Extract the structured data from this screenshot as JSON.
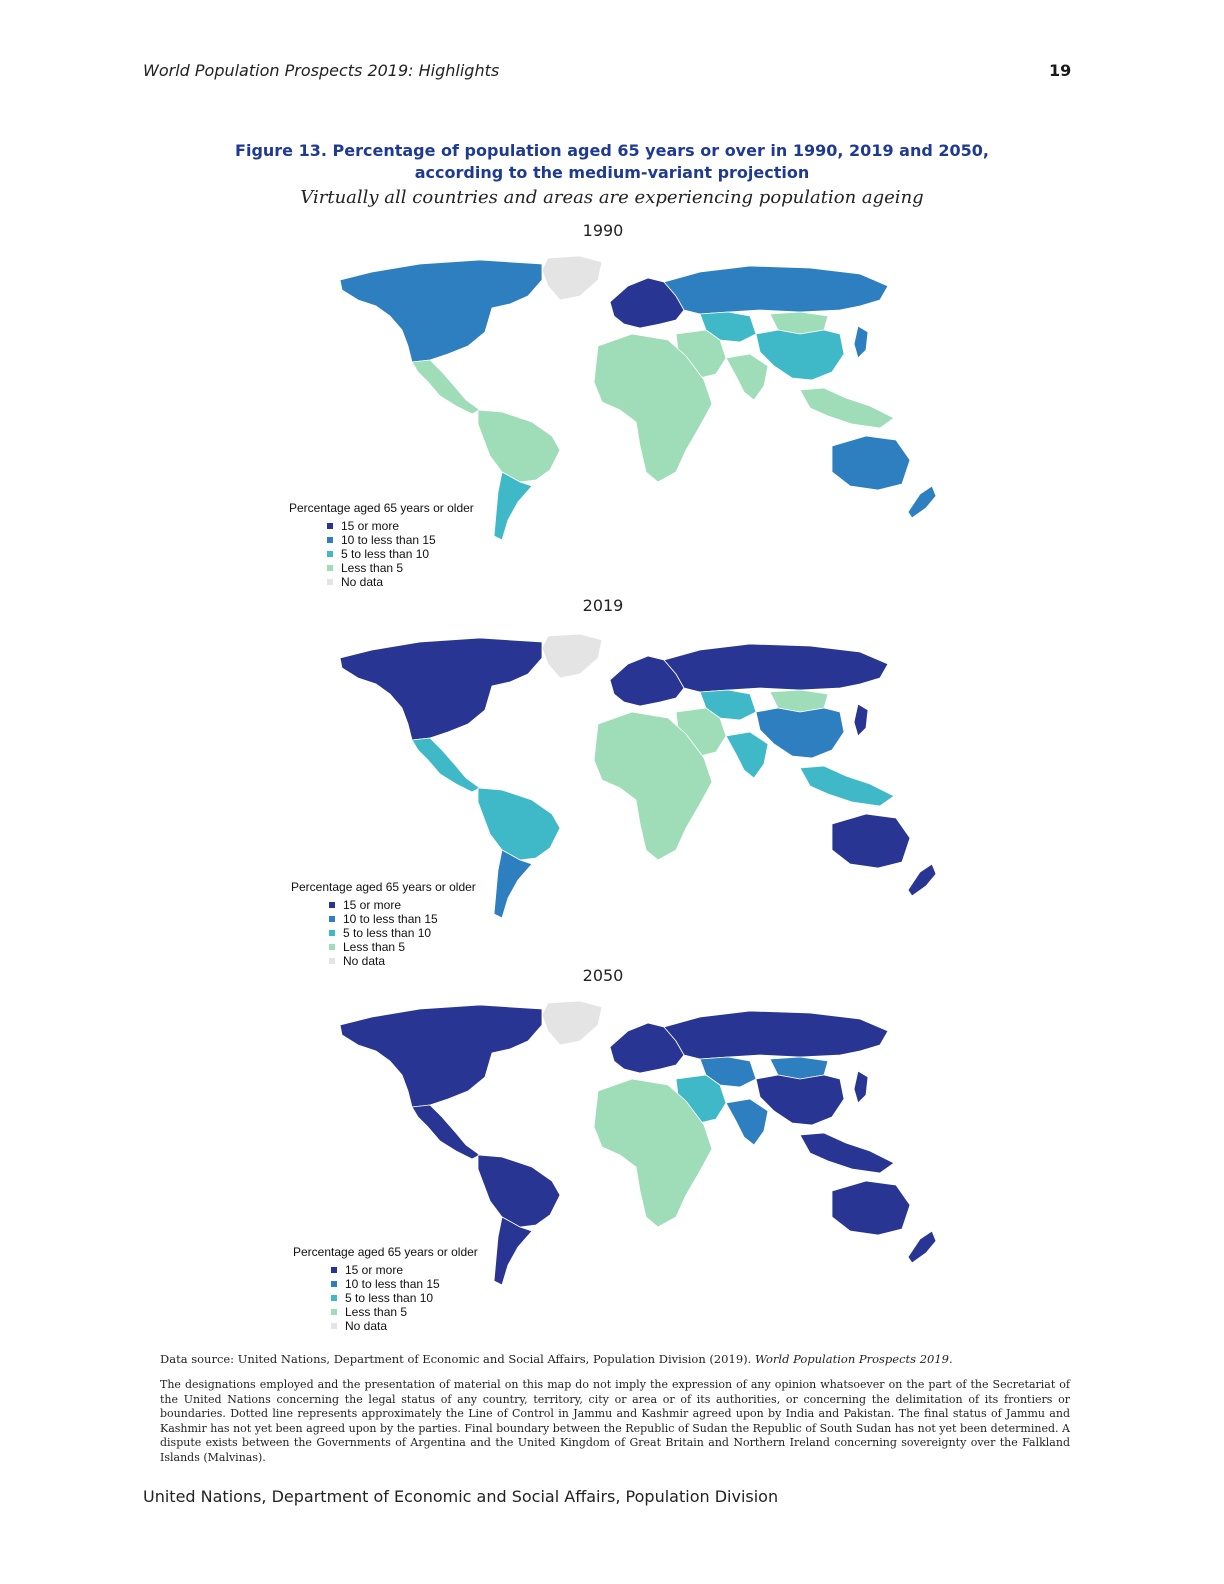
{
  "header": {
    "title": "World Population Prospects 2019: Highlights",
    "page_number": "19"
  },
  "figure": {
    "title_line1": "Figure 13. Percentage of population aged 65 years or over in 1990, 2019 and 2050,",
    "title_line2": "according to the medium-variant projection",
    "subtitle": "Virtually all countries and areas are experiencing population ageing"
  },
  "colors": {
    "c15_or_more": "#283593",
    "c10_to_15": "#2e7fbf",
    "c5_to_10": "#3fb8c8",
    "c_less_5": "#9fdcb8",
    "c_no_data": "#e4e4e4",
    "title_blue": "#1f3a93"
  },
  "legend": {
    "title": "Percentage aged 65 years or older",
    "items": [
      {
        "label": "15 or more",
        "color": "#283593"
      },
      {
        "label": "10 to less than 15",
        "color": "#2e7fbf"
      },
      {
        "label": "5 to less than 10",
        "color": "#3fb8c8"
      },
      {
        "label": "Less than 5",
        "color": "#9fdcb8"
      },
      {
        "label": "No data",
        "color": "#e4e4e4"
      }
    ]
  },
  "maps": [
    {
      "year": "1990",
      "regions": {
        "north_america": "c10_to_15",
        "mexico_central": "c_less_5",
        "south_america": "c_less_5",
        "southern_cone": "c5_to_10",
        "greenland": "c_no_data",
        "europe": "c15_or_more",
        "russia": "c10_to_15",
        "central_asia": "c5_to_10",
        "china": "c5_to_10",
        "mongolia": "c_less_5",
        "japan": "c10_to_15",
        "middle_east": "c_less_5",
        "south_asia": "c_less_5",
        "africa": "c_less_5",
        "southeast_asia": "c_less_5",
        "australia": "c10_to_15",
        "new_zealand": "c10_to_15"
      }
    },
    {
      "year": "2019",
      "regions": {
        "north_america": "c15_or_more",
        "mexico_central": "c5_to_10",
        "south_america": "c5_to_10",
        "southern_cone": "c10_to_15",
        "greenland": "c_no_data",
        "europe": "c15_or_more",
        "russia": "c15_or_more",
        "central_asia": "c5_to_10",
        "china": "c10_to_15",
        "mongolia": "c_less_5",
        "japan": "c15_or_more",
        "middle_east": "c_less_5",
        "south_asia": "c5_to_10",
        "africa": "c_less_5",
        "southeast_asia": "c5_to_10",
        "australia": "c15_or_more",
        "new_zealand": "c15_or_more"
      }
    },
    {
      "year": "2050",
      "regions": {
        "north_america": "c15_or_more",
        "mexico_central": "c15_or_more",
        "south_america": "c15_or_more",
        "southern_cone": "c15_or_more",
        "greenland": "c_no_data",
        "europe": "c15_or_more",
        "russia": "c15_or_more",
        "central_asia": "c10_to_15",
        "china": "c15_or_more",
        "mongolia": "c10_to_15",
        "japan": "c15_or_more",
        "middle_east": "c5_to_10",
        "south_asia": "c10_to_15",
        "africa": "c_less_5",
        "southeast_asia": "c15_or_more",
        "australia": "c15_or_more",
        "new_zealand": "c15_or_more"
      }
    }
  ],
  "data_source": {
    "prefix": "Data source: United Nations, Department of Economic and Social Affairs, Population Division (2019).",
    "publication": "World Population Prospects 2019."
  },
  "disclaimer": "The designations employed and the presentation of material on this map do not imply the expression of any opinion whatsoever on the part of the Secretariat of the United Nations concerning the legal status of any country, territory, city or area or of its authorities, or concerning the delimitation of its frontiers or boundaries. Dotted line represents approximately the Line of Control in Jammu and Kashmir agreed upon by India and Pakistan. The final status of Jammu and Kashmir has not yet been agreed upon by the parties. Final boundary between the Republic of Sudan the Republic of South Sudan has not yet been determined. A dispute exists between the Governments of Argentina and the United Kingdom of Great Britain and Northern Ireland concerning sovereignty over the Falkland Islands (Malvinas).",
  "footer": "United Nations, Department of Economic and Social Affairs, Population Division"
}
